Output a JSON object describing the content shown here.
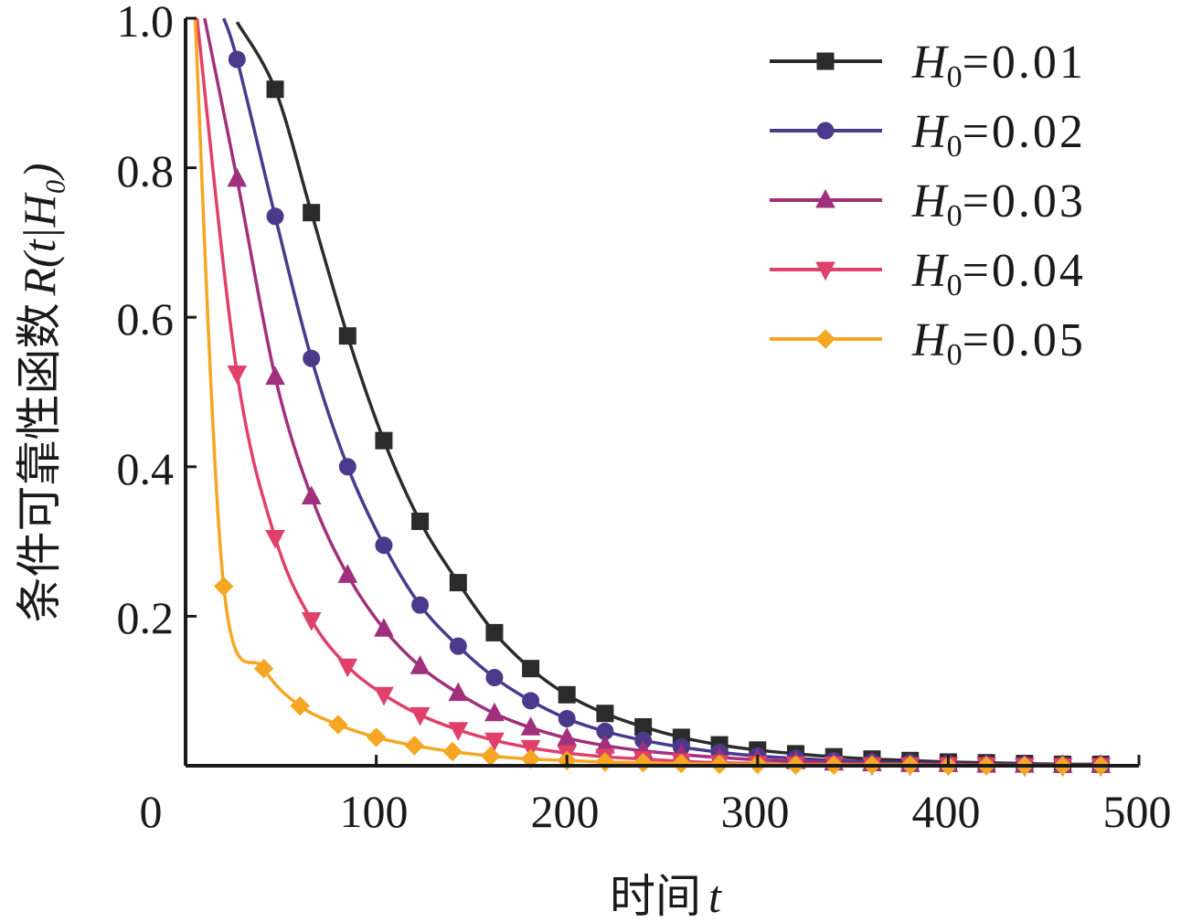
{
  "chart_data": {
    "type": "line",
    "xlabel_cn": "时间",
    "xlabel_var": "t",
    "ylabel_cn": "条件可靠性函数",
    "ylabel_math": "R(t|H₀)",
    "xlim": [
      0,
      500
    ],
    "ylim": [
      0,
      1.0
    ],
    "xticks": [
      "0",
      "100",
      "200",
      "300",
      "400",
      "500"
    ],
    "yticks": [
      "0.2",
      "0.4",
      "0.6",
      "0.8",
      "1.0"
    ],
    "legend_position": "top-right",
    "series": [
      {
        "name": "H0=0.01",
        "label_var": "H",
        "label_sub": "0",
        "label_rest": "=0.01",
        "marker": "square",
        "color": "#2b2b2b",
        "x": [
          27,
          47,
          66,
          85,
          104,
          123,
          143,
          162,
          181,
          200,
          220,
          240,
          260,
          280,
          300,
          320,
          340,
          360,
          380,
          400,
          420,
          440,
          460,
          480
        ],
        "y": [
          0.995,
          0.905,
          0.74,
          0.575,
          0.435,
          0.327,
          0.245,
          0.178,
          0.13,
          0.095,
          0.07,
          0.052,
          0.038,
          0.028,
          0.021,
          0.016,
          0.012,
          0.009,
          0.007,
          0.005,
          0.004,
          0.003,
          0.002,
          0.002
        ]
      },
      {
        "name": "H0=0.02",
        "label_var": "H",
        "label_sub": "0",
        "label_rest": "=0.02",
        "marker": "circle",
        "color": "#4b3a8c",
        "x": [
          20,
          27,
          47,
          66,
          85,
          104,
          123,
          143,
          162,
          181,
          200,
          220,
          240,
          260,
          280,
          300,
          320,
          340,
          360,
          380,
          400,
          420,
          440,
          460,
          480
        ],
        "y": [
          1.0,
          0.945,
          0.735,
          0.545,
          0.4,
          0.295,
          0.215,
          0.16,
          0.118,
          0.087,
          0.063,
          0.046,
          0.034,
          0.025,
          0.018,
          0.013,
          0.01,
          0.007,
          0.005,
          0.004,
          0.003,
          0.002,
          0.002,
          0.001,
          0.001
        ]
      },
      {
        "name": "H0=0.03",
        "label_var": "H",
        "label_sub": "0",
        "label_rest": "=0.03",
        "marker": "triangle-up",
        "color": "#a0307c",
        "x": [
          10,
          27,
          47,
          66,
          85,
          104,
          123,
          143,
          162,
          181,
          200,
          220,
          240,
          260,
          280,
          300,
          320,
          340,
          360,
          380,
          400,
          420,
          440,
          460,
          480
        ],
        "y": [
          1.0,
          0.785,
          0.52,
          0.36,
          0.255,
          0.183,
          0.133,
          0.097,
          0.07,
          0.051,
          0.037,
          0.027,
          0.02,
          0.015,
          0.011,
          0.008,
          0.006,
          0.004,
          0.003,
          0.002,
          0.002,
          0.001,
          0.001,
          0.001,
          0.001
        ]
      },
      {
        "name": "H0=0.04",
        "label_var": "H",
        "label_sub": "0",
        "label_rest": "=0.04",
        "marker": "triangle-down",
        "color": "#e0406a",
        "x": [
          6,
          27,
          47,
          66,
          85,
          104,
          123,
          143,
          162,
          181,
          200,
          220,
          240,
          260,
          280,
          300,
          320,
          340,
          360,
          380,
          400,
          420,
          440,
          460,
          480
        ],
        "y": [
          1.0,
          0.525,
          0.305,
          0.195,
          0.133,
          0.095,
          0.068,
          0.048,
          0.034,
          0.024,
          0.017,
          0.012,
          0.009,
          0.006,
          0.004,
          0.003,
          0.002,
          0.002,
          0.001,
          0.001,
          0.001,
          0.001,
          0.0,
          0.0,
          0.0
        ]
      },
      {
        "name": "H0=0.05",
        "label_var": "H",
        "label_sub": "0",
        "label_rest": "=0.05",
        "marker": "diamond",
        "color": "#f5a623",
        "x": [
          5,
          20,
          41,
          60,
          80,
          100,
          120,
          140,
          160,
          181,
          200,
          220,
          240,
          260,
          280,
          300,
          320,
          340,
          360,
          380,
          400,
          420,
          440,
          460,
          480
        ],
        "y": [
          1.0,
          0.24,
          0.13,
          0.08,
          0.055,
          0.038,
          0.027,
          0.019,
          0.013,
          0.009,
          0.007,
          0.005,
          0.004,
          0.003,
          0.002,
          0.002,
          0.001,
          0.001,
          0.001,
          0.001,
          0.0,
          0.0,
          0.0,
          0.0,
          0.0
        ]
      }
    ]
  }
}
